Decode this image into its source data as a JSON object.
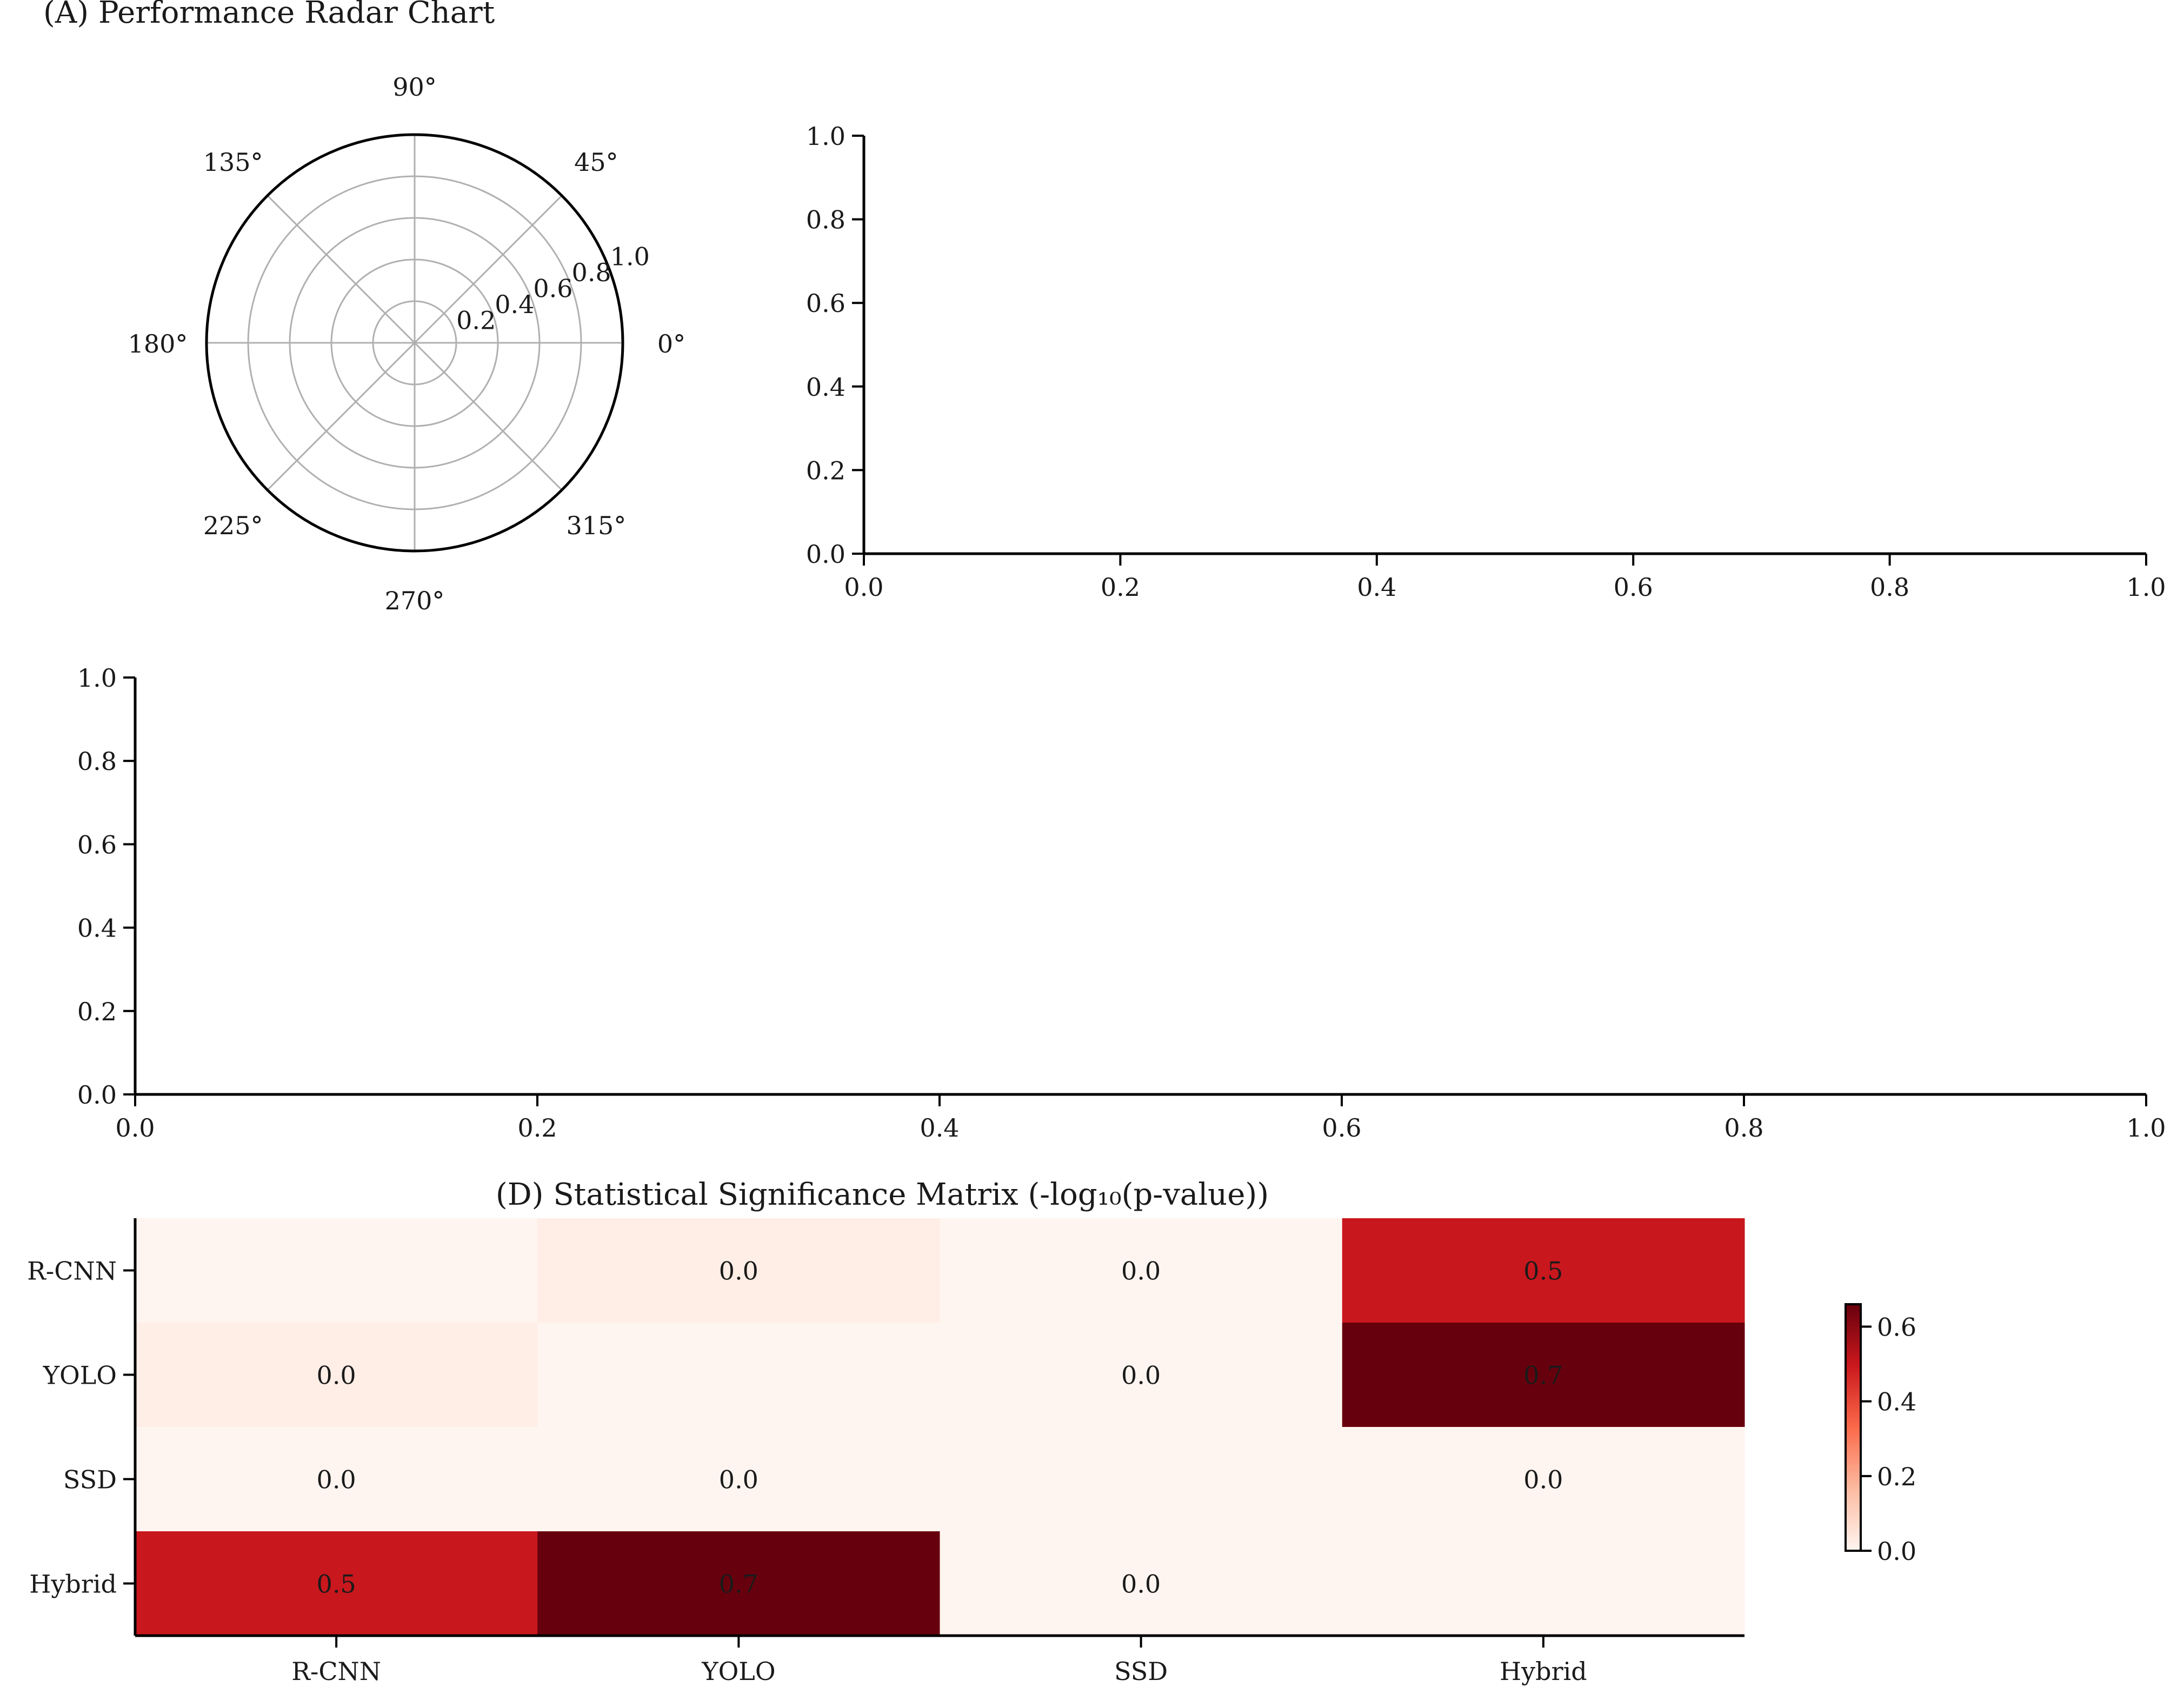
{
  "chart_data": [
    {
      "panel": "A",
      "type": "radar",
      "title": "(A) Performance Radar Chart",
      "theta_ticks": [
        "0°",
        "45°",
        "90°",
        "135°",
        "180°",
        "225°",
        "270°",
        "315°"
      ],
      "r_ticks": [
        "0.2",
        "0.4",
        "0.6",
        "0.8",
        "1.0"
      ],
      "rlim": [
        0,
        1.0
      ],
      "grid": true,
      "series": []
    },
    {
      "panel": "B",
      "type": "line",
      "title": "",
      "x_ticks": [
        "0.0",
        "0.2",
        "0.4",
        "0.6",
        "0.8",
        "1.0"
      ],
      "y_ticks": [
        "0.0",
        "0.2",
        "0.4",
        "0.6",
        "0.8",
        "1.0"
      ],
      "xlim": [
        0,
        1
      ],
      "ylim": [
        0,
        1
      ],
      "grid": false,
      "series": []
    },
    {
      "panel": "C",
      "type": "line",
      "title": "",
      "x_ticks": [
        "0.0",
        "0.2",
        "0.4",
        "0.6",
        "0.8",
        "1.0"
      ],
      "y_ticks": [
        "0.0",
        "0.2",
        "0.4",
        "0.6",
        "0.8",
        "1.0"
      ],
      "xlim": [
        0,
        1
      ],
      "ylim": [
        0,
        1
      ],
      "grid": false,
      "series": []
    },
    {
      "panel": "D",
      "type": "heatmap",
      "title": "(D) Statistical Significance Matrix (-log₁₀(p-value))",
      "x_categories": [
        "R-CNN",
        "YOLO",
        "SSD",
        "Hybrid"
      ],
      "y_categories": [
        "R-CNN",
        "YOLO",
        "SSD",
        "Hybrid"
      ],
      "values": [
        [
          null,
          0.02,
          0.0,
          0.5
        ],
        [
          0.02,
          null,
          0.0,
          0.7
        ],
        [
          0.0,
          0.0,
          null,
          0.0
        ],
        [
          0.5,
          0.7,
          0.0,
          null
        ]
      ],
      "cell_labels": [
        [
          "",
          "0.0",
          "0.0",
          "0.5"
        ],
        [
          "0.0",
          "",
          "0.0",
          "0.7"
        ],
        [
          "0.0",
          "0.0",
          "",
          "0.0"
        ],
        [
          "0.5",
          "0.7",
          "0.0",
          ""
        ]
      ],
      "colormap": "Reds",
      "colorbar_range": [
        0,
        0.66
      ],
      "colorbar_ticks": [
        "0.0",
        "0.2",
        "0.4",
        "0.6"
      ]
    }
  ]
}
